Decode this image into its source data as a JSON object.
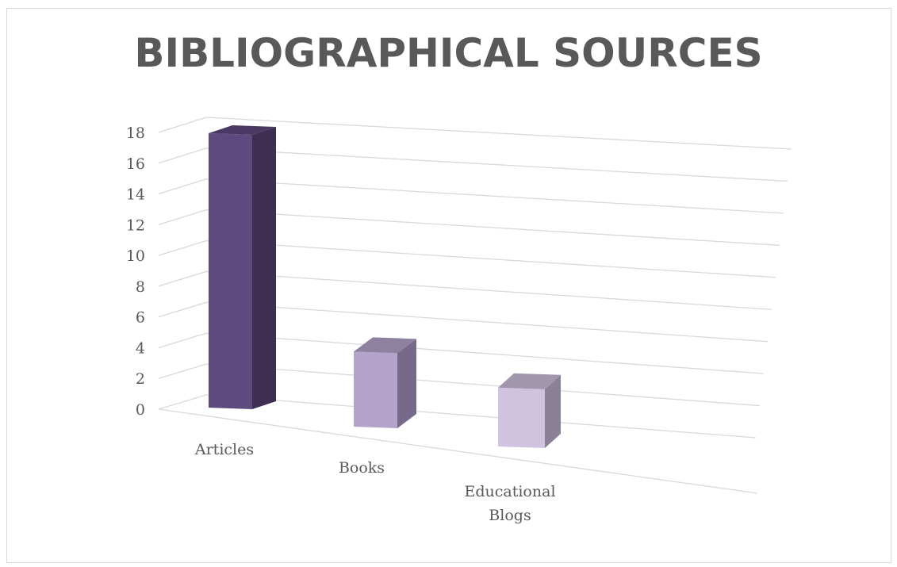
{
  "chart_data": {
    "type": "bar",
    "title": "BIBLIOGRAPHICAL SOURCES",
    "categories": [
      "Articles",
      "Books",
      "Educational Blogs"
    ],
    "category_lines": [
      [
        "Articles"
      ],
      [
        "Books"
      ],
      [
        "Educational",
        "Blogs"
      ]
    ],
    "values": [
      18,
      5,
      4
    ],
    "ylim": [
      0,
      18
    ],
    "yticks": [
      "0",
      "2",
      "4",
      "6",
      "8",
      "10",
      "12",
      "14",
      "16",
      "18"
    ],
    "grid": true,
    "style": "3d-column",
    "colors": {
      "front": [
        "#5e4a7e",
        "#b3a2c9",
        "#cfc3df"
      ],
      "side": [
        "#3d2e52",
        "#77698a",
        "#8a8196"
      ],
      "top": [
        "#4a3a63",
        "#8e81a0",
        "#a096ad"
      ],
      "grid": "#d9d9d9",
      "text": "#595959"
    }
  }
}
